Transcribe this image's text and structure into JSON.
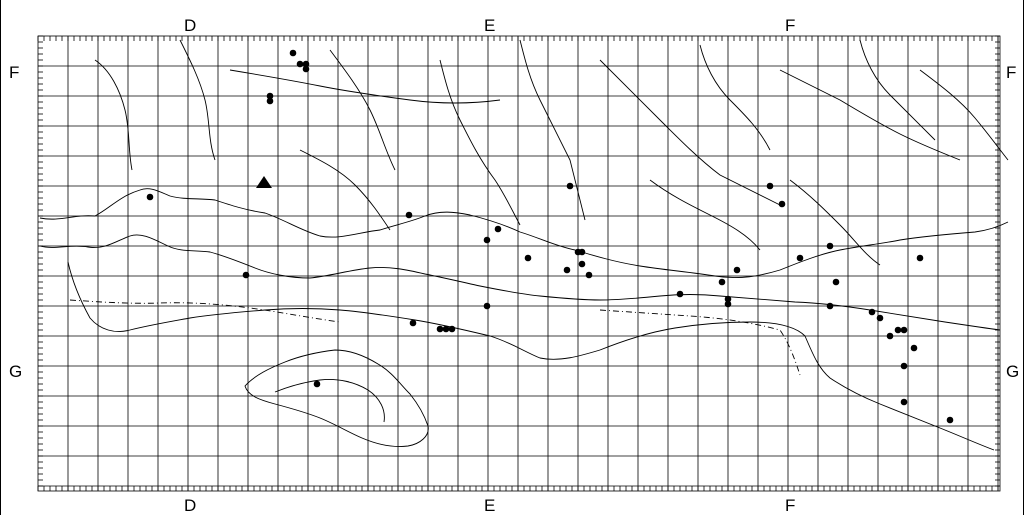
{
  "labels": {
    "top": [
      "D",
      "E",
      "F"
    ],
    "bottom": [
      "D",
      "E",
      "F"
    ],
    "left": [
      "F",
      "G"
    ],
    "right": [
      "F",
      "G"
    ]
  },
  "legend_symbols": {
    "record_dot": "filled-circle",
    "special_site": "filled-triangle"
  },
  "colors": {
    "ink": "#000000",
    "background": "#ffffff"
  }
}
